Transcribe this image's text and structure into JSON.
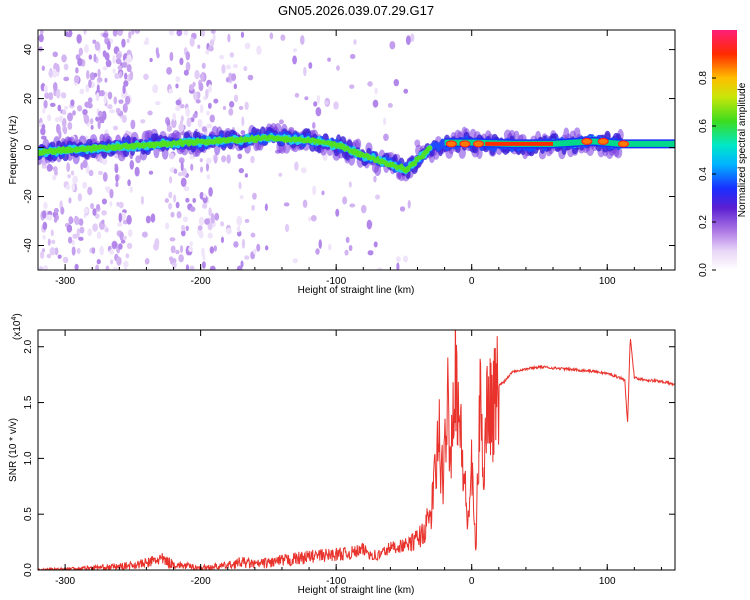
{
  "title": "GN05.2026.039.07.29.G17",
  "chart_data": [
    {
      "type": "heatmap",
      "xlabel": "Height of straight line (km)",
      "ylabel": "Frequency (Hz)",
      "xlim": [
        -320,
        150
      ],
      "ylim": [
        -50,
        48
      ],
      "xticks": [
        -300,
        -200,
        -100,
        0,
        100
      ],
      "yticks": [
        -40,
        -20,
        0,
        20,
        40
      ],
      "colorbar": {
        "label": "Normalized spectral amplitude",
        "range": [
          0,
          1
        ],
        "ticks": [
          "0.0",
          "0.2",
          "0.4",
          "0.6",
          "0.8"
        ]
      },
      "ridge": {
        "x": [
          -320,
          -300,
          -270,
          -240,
          -210,
          -180,
          -150,
          -120,
          -100,
          -80,
          -60,
          -48,
          -40,
          -30,
          -20,
          -10,
          0,
          20,
          50,
          80,
          90,
          100,
          115,
          150
        ],
        "y": [
          -2,
          -1,
          0,
          1,
          2,
          3,
          4,
          3,
          1,
          -3,
          -7,
          -9,
          -5,
          0,
          1,
          2,
          2,
          1,
          1,
          2,
          3,
          2,
          1,
          1
        ]
      },
      "grid": false
    },
    {
      "type": "line",
      "xlabel": "Height of straight line (km)",
      "ylabel": "SNR (10 * v/v)",
      "multiplier_label": "(x10",
      "multiplier_exp": "4",
      "xlim": [
        -320,
        150
      ],
      "ylim": [
        0,
        2.15
      ],
      "xticks": [
        -300,
        -200,
        -100,
        0,
        100
      ],
      "yticks": [
        "0.0",
        "0.5",
        "1.0",
        "1.5",
        "2.0"
      ],
      "color": "#e8322b",
      "x": [
        -320,
        -300,
        -280,
        -260,
        -240,
        -230,
        -220,
        -200,
        -180,
        -170,
        -160,
        -140,
        -120,
        -100,
        -90,
        -80,
        -70,
        -60,
        -50,
        -45,
        -40,
        -35,
        -30,
        -27,
        -24,
        -21,
        -18,
        -15,
        -12,
        -9,
        -6,
        -3,
        0,
        3,
        6,
        9,
        12,
        15,
        20,
        25,
        30,
        40,
        50,
        60,
        70,
        80,
        90,
        100,
        105,
        110,
        113,
        115,
        117,
        120,
        130,
        140,
        150
      ],
      "y": [
        0.0,
        0.01,
        0.02,
        0.03,
        0.06,
        0.1,
        0.05,
        0.02,
        0.04,
        0.07,
        0.05,
        0.08,
        0.12,
        0.14,
        0.15,
        0.18,
        0.12,
        0.2,
        0.22,
        0.24,
        0.28,
        0.35,
        0.5,
        0.85,
        1.2,
        0.7,
        1.6,
        1.1,
        1.95,
        1.3,
        0.9,
        0.4,
        0.9,
        0.15,
        1.5,
        0.95,
        1.6,
        1.45,
        1.65,
        1.7,
        1.78,
        1.8,
        1.82,
        1.81,
        1.8,
        1.79,
        1.78,
        1.76,
        1.74,
        1.72,
        1.7,
        1.3,
        2.1,
        1.72,
        1.7,
        1.69,
        1.66
      ]
    }
  ]
}
